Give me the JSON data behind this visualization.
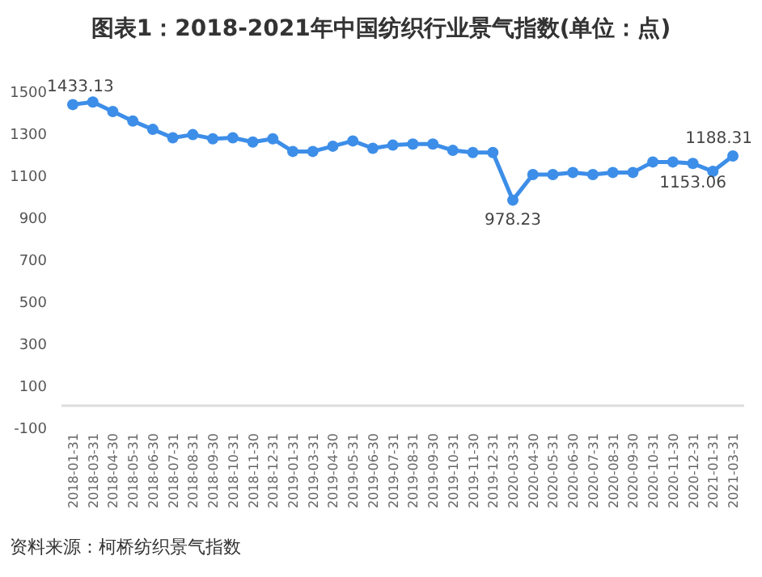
{
  "chart_data": {
    "type": "line",
    "title": "图表1：2018-2021年中国纺织行业景气指数(单位：点)",
    "categories": [
      "2018-01-31",
      "2018-03-31",
      "2018-04-30",
      "2018-05-31",
      "2018-06-30",
      "2018-07-31",
      "2018-08-31",
      "2018-09-30",
      "2018-10-31",
      "2018-11-30",
      "2018-12-31",
      "2019-01-31",
      "2019-03-31",
      "2019-04-30",
      "2019-05-31",
      "2019-06-30",
      "2019-07-31",
      "2019-08-31",
      "2019-09-30",
      "2019-10-31",
      "2019-11-30",
      "2019-12-31",
      "2020-03-31",
      "2020-04-30",
      "2020-05-31",
      "2020-06-30",
      "2020-07-31",
      "2020-08-31",
      "2020-09-30",
      "2020-10-31",
      "2020-11-30",
      "2020-12-31",
      "2021-01-31",
      "2021-03-31"
    ],
    "series": [
      {
        "color": "#3d8ee8",
        "values": [
          1433.13,
          1445,
          1400,
          1355,
          1315,
          1275,
          1290,
          1270,
          1275,
          1255,
          1270,
          1210,
          1210,
          1235,
          1260,
          1225,
          1240,
          1245,
          1245,
          1215,
          1205,
          1205,
          978.23,
          1100,
          1100,
          1110,
          1100,
          1110,
          1110,
          1160,
          1160,
          1153.06,
          1115,
          1188.31
        ],
        "value_labels": [
          "1433.13",
          null,
          null,
          null,
          null,
          null,
          null,
          null,
          null,
          null,
          null,
          null,
          null,
          null,
          null,
          null,
          null,
          null,
          null,
          null,
          null,
          null,
          "978.23",
          null,
          null,
          null,
          null,
          null,
          null,
          null,
          null,
          "1153.06",
          null,
          "1188.31"
        ]
      }
    ],
    "ylim": [
      -100,
      1500
    ],
    "yticks": [
      -100,
      100,
      300,
      500,
      700,
      900,
      1100,
      1300,
      1500
    ],
    "marker": "circle",
    "line_style": "solid",
    "annotations": [
      "资料来源：柯桥纺织景气指数"
    ]
  }
}
